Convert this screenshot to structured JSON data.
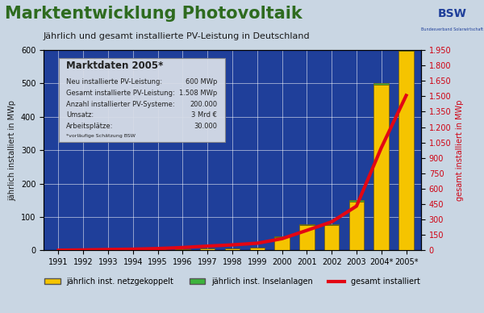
{
  "chart_data": {
    "type": "bar",
    "title": "Marktentwicklung Photovoltaik",
    "subtitle": "Jährlich und gesamt installierte PV-Leistung in Deutschland",
    "logo_text": "BSW",
    "logo_subtext": "Bundesverband Solarwirtschaft",
    "y_label": "jährlich installiert in MWp",
    "y2_label": "gesamt installiert in MWp",
    "categories": [
      "1991",
      "1992",
      "1993",
      "1994",
      "1995",
      "1996",
      "1997",
      "1998",
      "1999",
      "2000",
      "2001",
      "2002",
      "2003",
      "2004*",
      "2005*"
    ],
    "stacked": true,
    "grid": true,
    "legend": "upper center",
    "series": [
      {
        "name": "jährlich inst. netzgekoppelt",
        "type": "bar",
        "color": "#f5c400",
        "values": [
          1,
          1.5,
          2,
          2,
          2,
          3,
          5,
          5,
          8,
          40,
          76,
          76,
          147,
          497,
          598
        ]
      },
      {
        "name": "jährlich inst. Inselanlagen",
        "type": "bar",
        "color": "#3cb43c",
        "values": [
          0.5,
          0.5,
          1,
          1,
          1,
          1,
          1,
          1,
          1,
          2,
          2,
          2,
          3,
          3,
          2
        ]
      },
      {
        "name": "gesamt installiert",
        "type": "line",
        "color": "#e30613",
        "axis": "y2",
        "values": [
          2,
          5,
          9,
          12,
          18,
          28,
          42,
          54,
          70,
          114,
          195,
          278,
          431,
          1000,
          1508
        ]
      }
    ],
    "ylim": [
      0,
      600
    ],
    "yticks": [
      0,
      100,
      200,
      300,
      400,
      500,
      600
    ],
    "y2lim": [
      0,
      1950
    ],
    "y2ticks": [
      0,
      150,
      300,
      450,
      600,
      750,
      900,
      {
        "value": 1050,
        "label": "1.050"
      },
      {
        "value": 1200,
        "label": "1.200"
      },
      {
        "value": 1350,
        "label": "1.350"
      },
      {
        "value": 1500,
        "label": "1.500"
      },
      {
        "value": 1650,
        "label": "1.650"
      },
      {
        "value": 1800,
        "label": "1.800"
      },
      {
        "value": 1950,
        "label": "1.950"
      }
    ],
    "info_box": {
      "title": "Marktdaten 2005*",
      "rows": [
        [
          "Neu installierte PV-Leistung:",
          "600 MWp"
        ],
        [
          "Gesamt installierte PV-Leistung:",
          "1.508 MWp"
        ],
        [
          "Anzahl installierter PV-Systeme:",
          "200.000"
        ],
        [
          "Umsatz:",
          "3 Mrd €"
        ],
        [
          "Arbeitsplätze:",
          "30.000"
        ]
      ],
      "footnote": "*vorläufige Schätzung BSW"
    }
  }
}
